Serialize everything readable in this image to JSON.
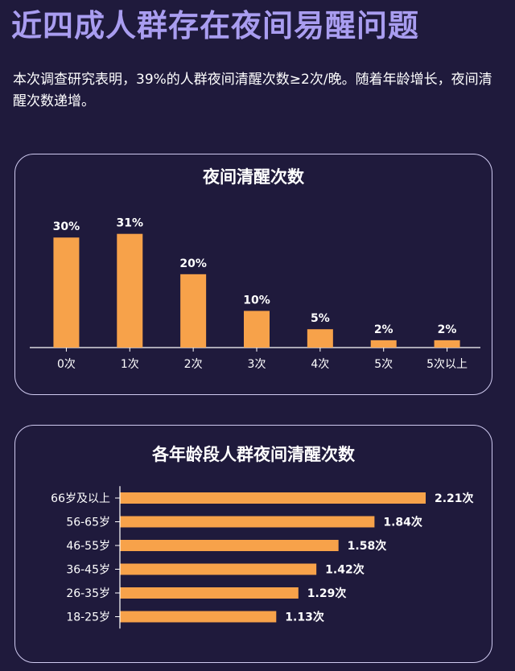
{
  "header": {
    "title": "近四成人群存在夜间易醒问题",
    "intro": "本次调查研究表明，39%的人群夜间清醒次数≥2次/晚。随着年龄增长，夜间清醒次数递增。"
  },
  "colors": {
    "bar": "#f7a24a",
    "background": "#1f1a3c",
    "title": "#a99df0",
    "border": "#cfcaf0"
  },
  "chart_data": [
    {
      "type": "bar",
      "title": "夜间清醒次数",
      "categories": [
        "0次",
        "1次",
        "2次",
        "3次",
        "4次",
        "5次",
        "5次以上"
      ],
      "values": [
        30,
        31,
        20,
        10,
        5,
        2,
        2
      ],
      "value_labels": [
        "30%",
        "31%",
        "20%",
        "10%",
        "5%",
        "2%",
        "2%"
      ],
      "ylim": [
        0,
        34
      ],
      "grid": false,
      "orientation": "vertical"
    },
    {
      "type": "bar",
      "title": "各年龄段人群夜间清醒次数",
      "categories": [
        "66岁及以上",
        "56-65岁",
        "46-55岁",
        "36-45岁",
        "26-35岁",
        "18-25岁"
      ],
      "values": [
        2.21,
        1.84,
        1.58,
        1.42,
        1.29,
        1.13
      ],
      "value_labels": [
        "2.21次",
        "1.84次",
        "1.58次",
        "1.42次",
        "1.29次",
        "1.13次"
      ],
      "xlim": [
        0,
        2.21
      ],
      "grid": false,
      "orientation": "horizontal"
    }
  ]
}
